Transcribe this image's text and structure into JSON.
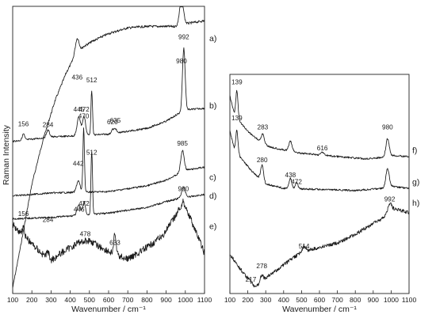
{
  "figure": {
    "y_axis_label": "Raman Intensity"
  },
  "chart_data": [
    {
      "type": "line",
      "panel": "left",
      "xlabel": "Wavenumber / cm⁻¹",
      "ylabel": "Raman Intensity",
      "xlim": [
        100,
        1100
      ],
      "xticks": [
        100,
        200,
        300,
        400,
        500,
        600,
        700,
        800,
        900,
        1000,
        1100
      ],
      "y_ticks_shown": false,
      "grid": false,
      "series": [
        {
          "name": "a)",
          "label_y": 0.11,
          "baseline": 0.05,
          "noise": 0.004,
          "curve": [
            [
              100,
              0.98
            ],
            [
              140,
              0.84
            ],
            [
              200,
              0.62
            ],
            [
              260,
              0.46
            ],
            [
              320,
              0.33
            ],
            [
              380,
              0.23
            ],
            [
              420,
              0.18
            ],
            [
              470,
              0.14
            ],
            [
              520,
              0.12
            ],
            [
              600,
              0.095
            ],
            [
              700,
              0.075
            ],
            [
              800,
              0.07
            ],
            [
              900,
              0.07
            ],
            [
              960,
              0.07
            ],
            [
              1010,
              0.06
            ],
            [
              1100,
              0.05
            ]
          ],
          "peaks": [
            {
              "pos": 436,
              "height": 0.055,
              "width": 10
            },
            {
              "pos": 980,
              "height": 0.095,
              "width": 10
            }
          ],
          "annotations": [
            {
              "text": "436",
              "x": 436,
              "y": 0.255
            },
            {
              "text": "980",
              "x": 980,
              "y": 0.198
            }
          ]
        },
        {
          "name": "b)",
          "label_y": 0.345,
          "baseline": 0.445,
          "noise": 0.003,
          "curve": [
            [
              100,
              0.47
            ],
            [
              300,
              0.455
            ],
            [
              600,
              0.445
            ],
            [
              800,
              0.425
            ],
            [
              900,
              0.4
            ],
            [
              960,
              0.375
            ],
            [
              1010,
              0.36
            ],
            [
              1100,
              0.355
            ]
          ],
          "peaks": [
            {
              "pos": 156,
              "height": 0.022,
              "width": 6
            },
            {
              "pos": 284,
              "height": 0.025,
              "width": 8
            },
            {
              "pos": 445,
              "height": 0.065,
              "width": 9
            },
            {
              "pos": 472,
              "height": 0.065,
              "width": 8
            },
            {
              "pos": 512,
              "height": 0.155,
              "width": 4
            },
            {
              "pos": 620,
              "height": 0.014,
              "width": 6
            },
            {
              "pos": 635,
              "height": 0.016,
              "width": 6
            },
            {
              "pos": 992,
              "height": 0.22,
              "width": 7
            }
          ],
          "annotations": [
            {
              "text": "156",
              "x": 156,
              "y": 0.418
            },
            {
              "text": "284",
              "x": 284,
              "y": 0.42
            },
            {
              "text": "445",
              "x": 445,
              "y": 0.367
            },
            {
              "text": "472",
              "x": 472,
              "y": 0.367
            },
            {
              "text": "512",
              "x": 512,
              "y": 0.265
            },
            {
              "text": "620",
              "x": 620,
              "y": 0.41
            },
            {
              "text": "635",
              "x": 635,
              "y": 0.405
            },
            {
              "text": "992",
              "x": 992,
              "y": 0.115
            }
          ]
        },
        {
          "name": "c)",
          "label_y": 0.593,
          "baseline": 0.64,
          "noise": 0.003,
          "curve": [
            [
              100,
              0.66
            ],
            [
              300,
              0.65
            ],
            [
              600,
              0.645
            ],
            [
              800,
              0.625
            ],
            [
              900,
              0.605
            ],
            [
              960,
              0.585
            ],
            [
              1010,
              0.57
            ],
            [
              1100,
              0.56
            ]
          ],
          "peaks": [
            {
              "pos": 442,
              "height": 0.04,
              "width": 9
            },
            {
              "pos": 470,
              "height": 0.225,
              "width": 4
            },
            {
              "pos": 985,
              "height": 0.075,
              "width": 9
            }
          ],
          "annotations": [
            {
              "text": "470",
              "x": 470,
              "y": 0.39
            },
            {
              "text": "442",
              "x": 442,
              "y": 0.555
            },
            {
              "text": "985",
              "x": 985,
              "y": 0.485
            }
          ]
        },
        {
          "name": "d)",
          "label_y": 0.658,
          "baseline": 0.72,
          "noise": 0.003,
          "curve": [
            [
              100,
              0.74
            ],
            [
              300,
              0.735
            ],
            [
              600,
              0.72
            ],
            [
              800,
              0.7
            ],
            [
              900,
              0.68
            ],
            [
              960,
              0.67
            ],
            [
              1100,
              0.655
            ]
          ],
          "peaks": [
            {
              "pos": 445,
              "height": 0.035,
              "width": 9
            },
            {
              "pos": 472,
              "height": 0.045,
              "width": 7
            },
            {
              "pos": 512,
              "height": 0.22,
              "width": 4
            },
            {
              "pos": 990,
              "height": 0.035,
              "width": 10
            }
          ],
          "annotations": [
            {
              "text": "512",
              "x": 512,
              "y": 0.517
            }
          ]
        },
        {
          "name": "e)",
          "label_y": 0.765,
          "baseline": 0.86,
          "noise": 0.012,
          "curve": [
            [
              100,
              0.76
            ],
            [
              160,
              0.8
            ],
            [
              250,
              0.86
            ],
            [
              300,
              0.885
            ],
            [
              350,
              0.86
            ],
            [
              450,
              0.82
            ],
            [
              500,
              0.815
            ],
            [
              560,
              0.84
            ],
            [
              620,
              0.86
            ],
            [
              700,
              0.88
            ],
            [
              800,
              0.84
            ],
            [
              880,
              0.8
            ],
            [
              940,
              0.74
            ],
            [
              990,
              0.68
            ],
            [
              1040,
              0.76
            ],
            [
              1100,
              0.86
            ]
          ],
          "peaks": [
            {
              "pos": 156,
              "height": 0.03,
              "width": 6
            },
            {
              "pos": 284,
              "height": 0.02,
              "width": 8
            },
            {
              "pos": 633,
              "height": 0.07,
              "width": 6
            }
          ],
          "annotations": [
            {
              "text": "156",
              "x": 156,
              "y": 0.73
            },
            {
              "text": "284",
              "x": 284,
              "y": 0.75
            },
            {
              "text": "446",
              "x": 446,
              "y": 0.715
            },
            {
              "text": "472",
              "x": 472,
              "y": 0.694
            },
            {
              "text": "478",
              "x": 478,
              "y": 0.8
            },
            {
              "text": "633",
              "x": 633,
              "y": 0.83
            },
            {
              "text": "990",
              "x": 990,
              "y": 0.643
            }
          ]
        }
      ]
    },
    {
      "type": "line",
      "panel": "right",
      "xlabel": "Wavenumber / cm⁻¹",
      "xlim": [
        100,
        1100
      ],
      "xticks": [
        100,
        200,
        300,
        400,
        500,
        600,
        700,
        800,
        900,
        1000,
        1100
      ],
      "y_ticks_shown": false,
      "grid": false,
      "series": [
        {
          "name": "f)",
          "label_y": 0.345,
          "baseline": 0.36,
          "noise": 0.004,
          "curve": [
            [
              100,
              0.1
            ],
            [
              125,
              0.18
            ],
            [
              160,
              0.22
            ],
            [
              200,
              0.26
            ],
            [
              260,
              0.3
            ],
            [
              320,
              0.33
            ],
            [
              400,
              0.345
            ],
            [
              500,
              0.36
            ],
            [
              700,
              0.375
            ],
            [
              850,
              0.385
            ],
            [
              950,
              0.38
            ],
            [
              1000,
              0.37
            ],
            [
              1100,
              0.375
            ]
          ],
          "peaks": [
            {
              "pos": 139,
              "height": 0.12,
              "width": 6
            },
            {
              "pos": 283,
              "height": 0.04,
              "width": 8
            },
            {
              "pos": 438,
              "height": 0.045,
              "width": 9
            },
            {
              "pos": 616,
              "height": 0.015,
              "width": 8
            },
            {
              "pos": 980,
              "height": 0.08,
              "width": 9
            }
          ],
          "annotations": [
            {
              "text": "139",
              "x": 139,
              "y": 0.045
            },
            {
              "text": "283",
              "x": 283,
              "y": 0.25
            },
            {
              "text": "616",
              "x": 616,
              "y": 0.347
            },
            {
              "text": "980",
              "x": 980,
              "y": 0.25
            }
          ]
        },
        {
          "name": "g)",
          "label_y": 0.49,
          "baseline": 0.52,
          "noise": 0.004,
          "curve": [
            [
              100,
              0.26
            ],
            [
              125,
              0.34
            ],
            [
              160,
              0.38
            ],
            [
              220,
              0.44
            ],
            [
              300,
              0.5
            ],
            [
              400,
              0.52
            ],
            [
              600,
              0.525
            ],
            [
              800,
              0.53
            ],
            [
              950,
              0.52
            ],
            [
              1000,
              0.51
            ],
            [
              1100,
              0.52
            ]
          ],
          "peaks": [
            {
              "pos": 139,
              "height": 0.1,
              "width": 6
            },
            {
              "pos": 280,
              "height": 0.07,
              "width": 8
            },
            {
              "pos": 438,
              "height": 0.045,
              "width": 8
            },
            {
              "pos": 472,
              "height": 0.03,
              "width": 7
            },
            {
              "pos": 980,
              "height": 0.085,
              "width": 9
            }
          ],
          "annotations": [
            {
              "text": "139",
              "x": 139,
              "y": 0.21
            },
            {
              "text": "280",
              "x": 280,
              "y": 0.4
            },
            {
              "text": "438",
              "x": 438,
              "y": 0.47
            },
            {
              "text": "472",
              "x": 472,
              "y": 0.5
            }
          ]
        },
        {
          "name": "h)",
          "label_y": 0.585,
          "baseline": 0.9,
          "noise": 0.008,
          "curve": [
            [
              100,
              0.82
            ],
            [
              150,
              0.88
            ],
            [
              200,
              0.93
            ],
            [
              240,
              0.97
            ],
            [
              300,
              0.93
            ],
            [
              400,
              0.87
            ],
            [
              500,
              0.81
            ],
            [
              600,
              0.79
            ],
            [
              700,
              0.77
            ],
            [
              800,
              0.73
            ],
            [
              900,
              0.68
            ],
            [
              950,
              0.66
            ],
            [
              1000,
              0.61
            ],
            [
              1050,
              0.62
            ],
            [
              1100,
              0.63
            ]
          ],
          "peaks": [
            {
              "pos": 278,
              "height": 0.03,
              "width": 8
            },
            {
              "pos": 514,
              "height": 0.02,
              "width": 9
            },
            {
              "pos": 992,
              "height": 0.03,
              "width": 9
            }
          ],
          "annotations": [
            {
              "text": "217",
              "x": 217,
              "y": 0.945
            },
            {
              "text": "278",
              "x": 278,
              "y": 0.885
            },
            {
              "text": "514",
              "x": 514,
              "y": 0.795
            },
            {
              "text": "992",
              "x": 992,
              "y": 0.58
            }
          ]
        }
      ]
    }
  ]
}
